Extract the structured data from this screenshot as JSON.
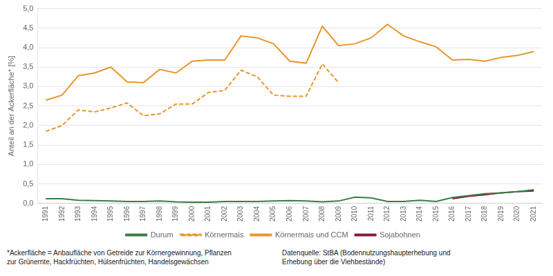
{
  "chart_data": {
    "type": "line",
    "ylabel": "Anteil an der Ackerfläche* [%]",
    "x": [
      1991,
      1992,
      1993,
      1994,
      1995,
      1996,
      1997,
      1998,
      1999,
      2000,
      2001,
      2002,
      2003,
      2004,
      2005,
      2006,
      2007,
      2008,
      2009,
      2010,
      2011,
      2012,
      2013,
      2014,
      2015,
      2016,
      2017,
      2018,
      2019,
      2020,
      2021
    ],
    "series": [
      {
        "name": "Durum",
        "color": "#3a7d44",
        "line_style": "solid",
        "values": [
          0.12,
          0.12,
          0.08,
          0.07,
          0.06,
          0.05,
          0.05,
          0.06,
          0.04,
          0.03,
          0.03,
          0.05,
          0.05,
          0.05,
          0.06,
          0.07,
          0.06,
          0.04,
          0.06,
          0.16,
          0.14,
          0.05,
          0.05,
          0.08,
          0.05,
          0.15,
          0.2,
          0.25,
          0.27,
          0.3,
          0.35
        ]
      },
      {
        "name": "Körnermais",
        "color": "#e8962a",
        "line_style": "dashed",
        "values": [
          1.85,
          2.0,
          2.4,
          2.35,
          2.45,
          2.58,
          2.25,
          2.3,
          2.55,
          2.55,
          2.85,
          2.9,
          3.42,
          3.25,
          2.78,
          2.75,
          2.75,
          3.58,
          3.1,
          null,
          null,
          null,
          null,
          null,
          null,
          null,
          null,
          null,
          null,
          null,
          null
        ]
      },
      {
        "name": "Körnermais und CCM",
        "color": "#e8962a",
        "line_style": "solid",
        "values": [
          2.65,
          2.78,
          3.28,
          3.35,
          3.5,
          3.12,
          3.1,
          3.44,
          3.35,
          3.65,
          3.68,
          3.68,
          4.3,
          4.25,
          4.1,
          3.65,
          3.6,
          4.55,
          4.05,
          4.1,
          4.25,
          4.6,
          4.3,
          4.15,
          4.02,
          3.68,
          3.7,
          3.65,
          3.75,
          3.8,
          3.9
        ]
      },
      {
        "name": "Sojabohnen",
        "color": "#8b1a3a",
        "line_style": "solid",
        "values": [
          null,
          null,
          null,
          null,
          null,
          null,
          null,
          null,
          null,
          null,
          null,
          null,
          null,
          null,
          null,
          null,
          null,
          null,
          null,
          null,
          null,
          null,
          null,
          null,
          null,
          0.12,
          0.18,
          0.22,
          0.27,
          0.3,
          0.32
        ]
      }
    ],
    "xlim": [
      1990.5,
      2021.5
    ],
    "xticks": [
      1991,
      1992,
      1993,
      1994,
      1995,
      1996,
      1997,
      1998,
      1999,
      2000,
      2001,
      2002,
      2003,
      2004,
      2005,
      2006,
      2007,
      2008,
      2009,
      2010,
      2011,
      2012,
      2013,
      2014,
      2015,
      2016,
      2017,
      2018,
      2019,
      2020,
      2021
    ],
    "ylim": [
      0,
      5.0
    ],
    "yticks": [
      {
        "value": 0.0,
        "label": "0,0"
      },
      {
        "value": 0.5,
        "label": "0,5"
      },
      {
        "value": 1.0,
        "label": "1,0"
      },
      {
        "value": 1.5,
        "label": "1,5"
      },
      {
        "value": 2.0,
        "label": "2,0"
      },
      {
        "value": 2.5,
        "label": "2,5"
      },
      {
        "value": 3.0,
        "label": "3,0"
      },
      {
        "value": 3.5,
        "label": "3,5"
      },
      {
        "value": 4.0,
        "label": "4,0"
      },
      {
        "value": 4.5,
        "label": "4,5"
      },
      {
        "value": 5.0,
        "label": "5,0"
      }
    ],
    "grid": "y",
    "legend": "bottom",
    "annotations": [
      "*Ackerfläche = Anbaufläche von Getreide zur Körnergewinnung, Pflanzen\nzur Grünernte, Hackfrüchten, Hülsenfrüchten, Handelsgewächsen",
      "Datenquelle: StBA (Bodennutzungshaupterhebung und\nErhebung über die Viehbestände)"
    ]
  }
}
